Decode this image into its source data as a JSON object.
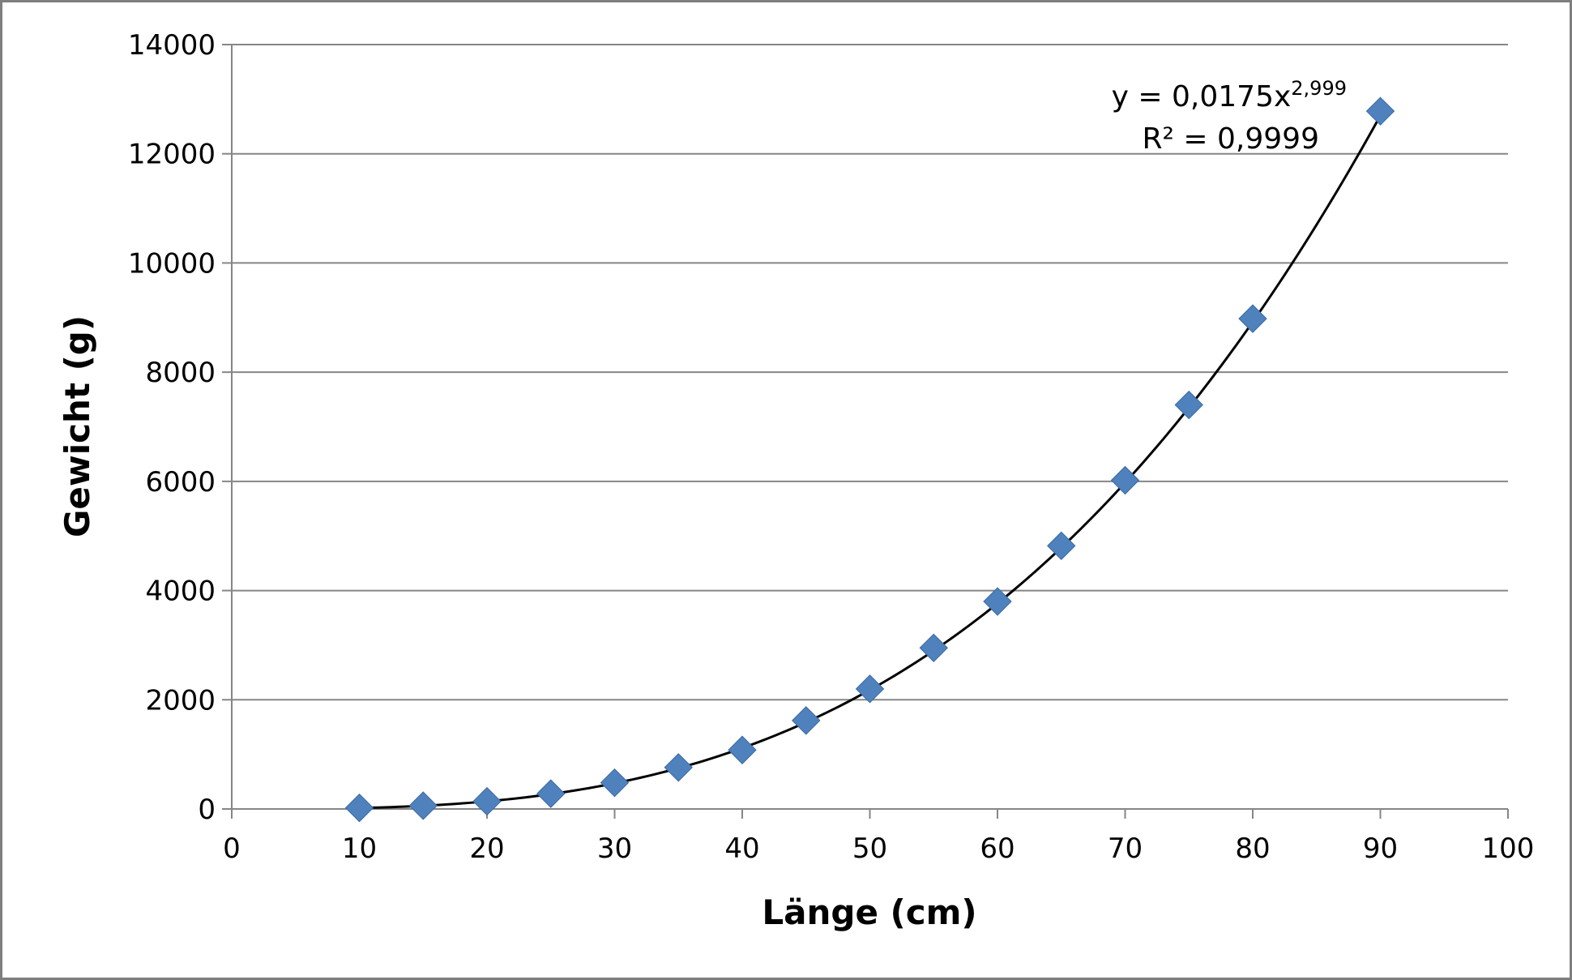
{
  "chart_data": {
    "type": "scatter",
    "xlabel": "Länge (cm)",
    "ylabel": "Gewicht (g)",
    "xlim": [
      0,
      100
    ],
    "ylim": [
      0,
      14000
    ],
    "x_ticks": [
      0,
      10,
      20,
      30,
      40,
      50,
      60,
      70,
      80,
      90,
      100
    ],
    "y_ticks": [
      0,
      2000,
      4000,
      6000,
      8000,
      10000,
      12000,
      14000
    ],
    "grid": "horizontal",
    "legend": "none",
    "series": [
      {
        "marker": "diamond",
        "color": "#4f81bd",
        "points": [
          {
            "x": 10,
            "y": 20
          },
          {
            "x": 15,
            "y": 60
          },
          {
            "x": 20,
            "y": 140
          },
          {
            "x": 25,
            "y": 280
          },
          {
            "x": 30,
            "y": 480
          },
          {
            "x": 35,
            "y": 760
          },
          {
            "x": 40,
            "y": 1080
          },
          {
            "x": 45,
            "y": 1620
          },
          {
            "x": 50,
            "y": 2200
          },
          {
            "x": 55,
            "y": 2950
          },
          {
            "x": 60,
            "y": 3800
          },
          {
            "x": 65,
            "y": 4820
          },
          {
            "x": 70,
            "y": 6020
          },
          {
            "x": 75,
            "y": 7400
          },
          {
            "x": 80,
            "y": 8980
          },
          {
            "x": 90,
            "y": 12780
          }
        ]
      }
    ],
    "trendline": {
      "type": "power",
      "coefficient": 0.0175,
      "exponent": 2.999,
      "x_range": [
        10,
        90
      ],
      "color": "#000000",
      "equation_prefix": "y = 0,0175x",
      "equation_exponent": "2,999",
      "r_squared_label": "R² = 0,9999"
    }
  }
}
